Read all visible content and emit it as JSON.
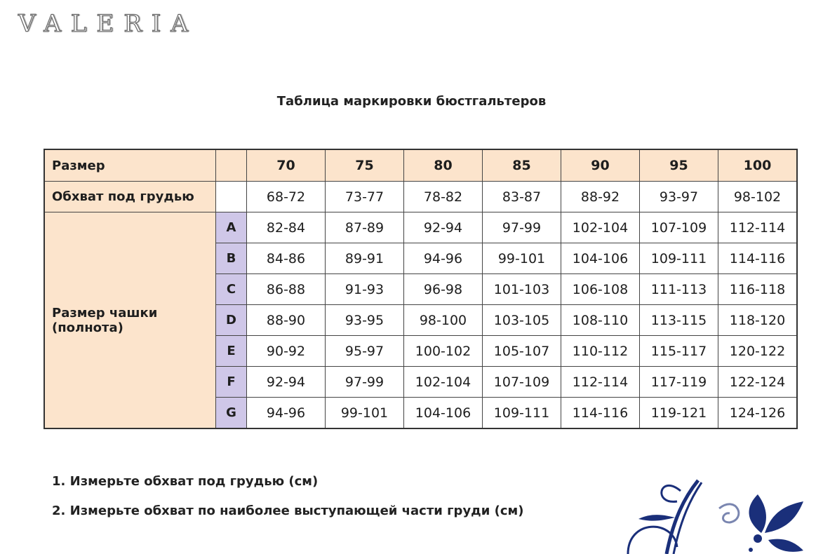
{
  "logo": "VALERIA",
  "title": "Таблица маркировки бюстгальтеров",
  "table": {
    "size_label": "Размер",
    "sizes": [
      "70",
      "75",
      "80",
      "85",
      "90",
      "95",
      "100"
    ],
    "underbust_label": "Обхват под грудью",
    "underbust": [
      "68-72",
      "73-77",
      "78-82",
      "83-87",
      "88-92",
      "93-97",
      "98-102"
    ],
    "cup_label_1": "Размер чашки",
    "cup_label_2": "(полнота)",
    "cups": [
      {
        "cup": "A",
        "values": [
          "82-84",
          "87-89",
          "92-94",
          "97-99",
          "102-104",
          "107-109",
          "112-114"
        ]
      },
      {
        "cup": "B",
        "values": [
          "84-86",
          "89-91",
          "94-96",
          "99-101",
          "104-106",
          "109-111",
          "114-116"
        ]
      },
      {
        "cup": "C",
        "values": [
          "86-88",
          "91-93",
          "96-98",
          "101-103",
          "106-108",
          "111-113",
          "116-118"
        ]
      },
      {
        "cup": "D",
        "values": [
          "88-90",
          "93-95",
          "98-100",
          "103-105",
          "108-110",
          "113-115",
          "118-120"
        ]
      },
      {
        "cup": "E",
        "values": [
          "90-92",
          "95-97",
          "100-102",
          "105-107",
          "110-112",
          "115-117",
          "120-122"
        ]
      },
      {
        "cup": "F",
        "values": [
          "92-94",
          "97-99",
          "102-104",
          "107-109",
          "112-114",
          "117-119",
          "122-124"
        ]
      },
      {
        "cup": "G",
        "values": [
          "94-96",
          "99-101",
          "104-106",
          "109-111",
          "114-116",
          "119-121",
          "124-126"
        ]
      }
    ]
  },
  "notes": [
    "1. Измерьте обхват под грудью (см)",
    "2. Измерьте обхват по наиболее выступающей части груди (см)"
  ],
  "colors": {
    "header": "#fce4cc",
    "cup": "#cfc7e8",
    "ornament": "#1a2f7a"
  }
}
